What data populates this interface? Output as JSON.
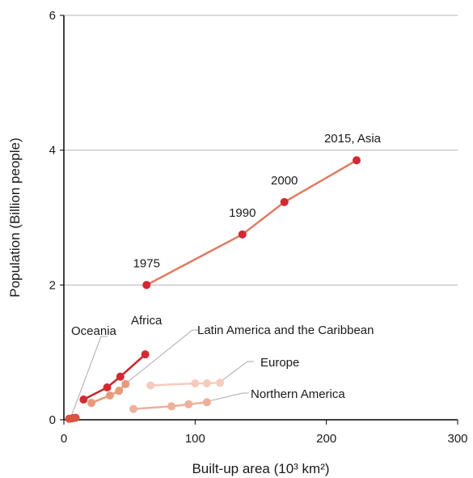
{
  "chart_data": {
    "type": "line",
    "xlabel": "Built-up area (10³ km²)",
    "ylabel": "Population (Billion people)",
    "xlim": [
      0,
      300
    ],
    "ylim": [
      0,
      6
    ],
    "x_ticks": [
      "0",
      "100",
      "200",
      "300"
    ],
    "y_ticks": [
      "0",
      "2",
      "4",
      "6"
    ],
    "grid": "horizontal",
    "series": [
      {
        "name": "Asia",
        "color": "#e07b63",
        "marker_color": "#d12a33",
        "points": [
          [
            63,
            2.0
          ],
          [
            136,
            2.75
          ],
          [
            168,
            3.23
          ],
          [
            223,
            3.85
          ]
        ],
        "point_labels": [
          "1975",
          "1990",
          "2000",
          "2015, Asia"
        ]
      },
      {
        "name": "Africa",
        "color": "#c8232d",
        "marker_color": "#d12a33",
        "points": [
          [
            15,
            0.3
          ],
          [
            33,
            0.48
          ],
          [
            43,
            0.64
          ],
          [
            62,
            0.97
          ]
        ]
      },
      {
        "name": "Latin America and the Caribbean",
        "color": "#e69a7a",
        "marker_color": "#e69a7a",
        "points": [
          [
            21,
            0.25
          ],
          [
            35,
            0.36
          ],
          [
            42,
            0.43
          ],
          [
            47,
            0.53
          ]
        ]
      },
      {
        "name": "Europe",
        "color": "#f5cbbd",
        "marker_color": "#f5cbbd",
        "points": [
          [
            66,
            0.51
          ],
          [
            100,
            0.54
          ],
          [
            109,
            0.54
          ],
          [
            119,
            0.55
          ]
        ]
      },
      {
        "name": "Northern America",
        "color": "#efb09a",
        "marker_color": "#efb09a",
        "points": [
          [
            53,
            0.16
          ],
          [
            82,
            0.2
          ],
          [
            95,
            0.23
          ],
          [
            109,
            0.26
          ]
        ]
      },
      {
        "name": "Oceania",
        "color": "#d9533f",
        "marker_color": "#d9533f",
        "points": [
          [
            4,
            0.015
          ],
          [
            6,
            0.02
          ],
          [
            7,
            0.025
          ],
          [
            9,
            0.03
          ]
        ]
      }
    ],
    "annotations": {
      "oceania": "Oceania",
      "africa": "Africa",
      "latin": "Latin America and the Caribbean",
      "europe": "Europe",
      "northern": "Northern America"
    }
  }
}
